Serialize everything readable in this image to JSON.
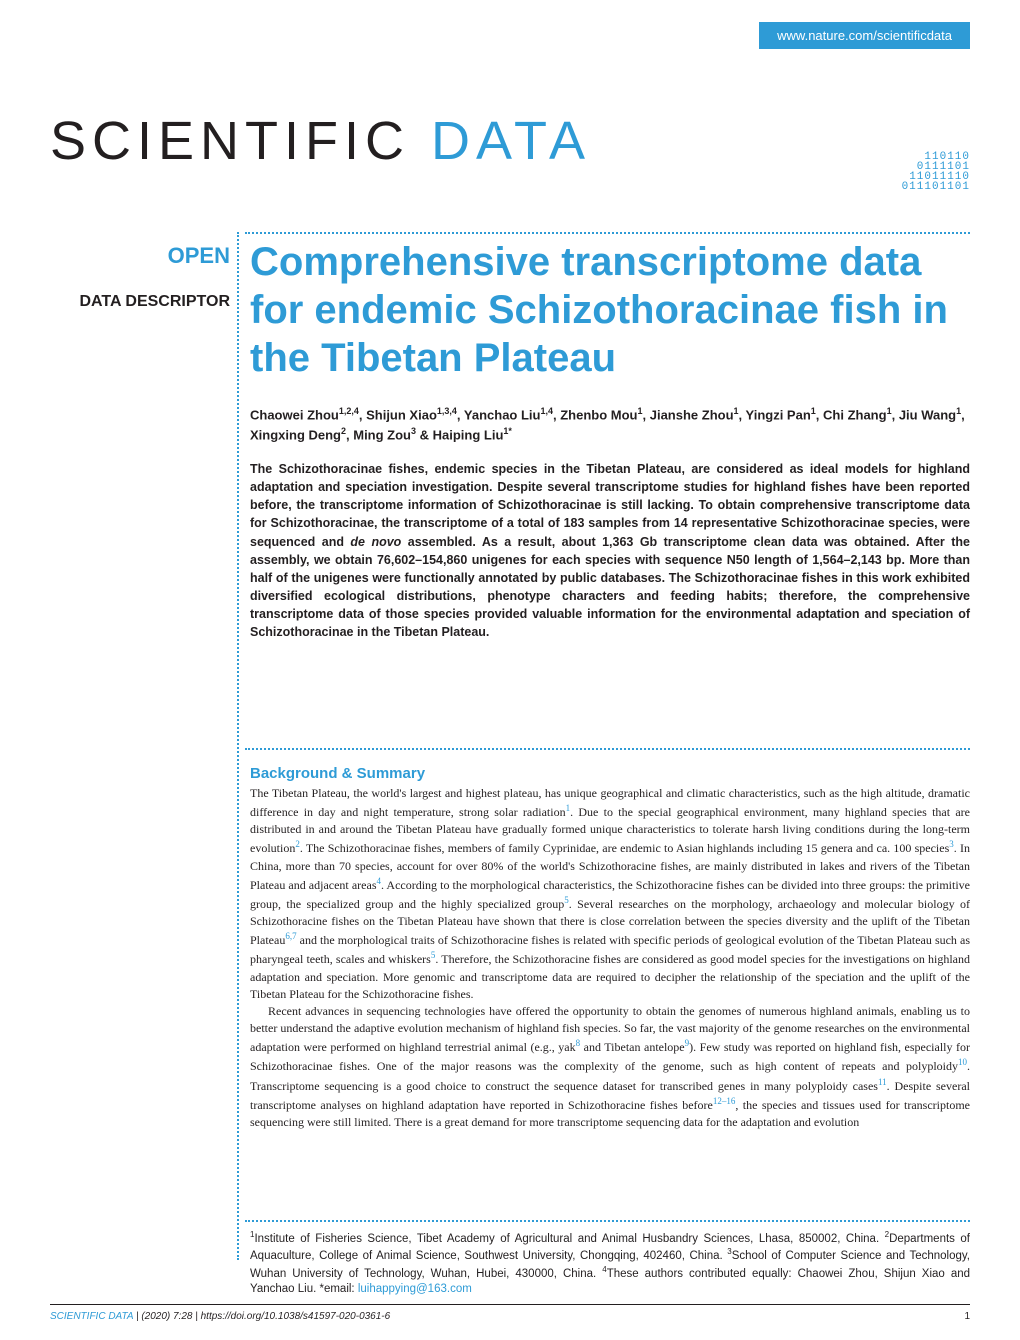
{
  "header": {
    "url": "www.nature.com/scientificdata"
  },
  "logo": {
    "scientific": "SCIENTIFIC",
    "data": " DATA",
    "binary": "110110\n0111101\n11011110\n011101101"
  },
  "labels": {
    "open": "OPEN",
    "descriptor": "DATA DESCRIPTOR"
  },
  "article": {
    "title": "Comprehensive transcriptome data for endemic Schizothoracinae fish in the Tibetan Plateau",
    "authors_html": "Chaowei Zhou<sup>1,2,4</sup>, Shijun Xiao<sup>1,3,4</sup>, Yanchao Liu<sup>1,4</sup>, Zhenbo Mou<sup>1</sup>, Jianshe Zhou<sup>1</sup>, Yingzi Pan<sup>1</sup>, Chi Zhang<sup>1</sup>, Jiu Wang<sup>1</sup>, Xingxing Deng<sup>2</sup>, Ming Zou<sup>3</sup> & Haiping Liu<sup>1*</sup>",
    "abstract": "The Schizothoracinae fishes, endemic species in the Tibetan Plateau, are considered as ideal models for highland adaptation and speciation investigation. Despite several transcriptome studies for highland fishes have been reported before, the transcriptome information of Schizothoracinae is still lacking. To obtain comprehensive transcriptome data for Schizothoracinae, the transcriptome of a total of 183 samples from 14 representative Schizothoracinae species, were sequenced and <em>de novo</em> assembled. As a result, about 1,363 Gb transcriptome clean data was obtained. After the assembly, we obtain 76,602–154,860 unigenes for each species with sequence N50 length of 1,564–2,143 bp. More than half of the unigenes were functionally annotated by public databases. The Schizothoracinae fishes in this work exhibited diversified ecological distributions, phenotype characters and feeding habits; therefore, the comprehensive transcriptome data of those species provided valuable information for the environmental adaptation and speciation of Schizothoracinae in the Tibetan Plateau."
  },
  "section": {
    "heading": "Background & Summary",
    "para1": "The Tibetan Plateau, the world's largest and highest plateau, has unique geographical and climatic characteristics, such as the high altitude, dramatic difference in day and night temperature, strong solar radiation<sup>1</sup>. Due to the special geographical environment, many highland species that are distributed in and around the Tibetan Plateau have gradually formed unique characteristics to tolerate harsh living conditions during the long-term evolution<sup>2</sup>. The Schizothoracinae fishes, members of family Cyprinidae, are endemic to Asian highlands including 15 genera and ca. 100 species<sup>3</sup>. In China, more than 70 species, account for over 80% of the world's Schizothoracine fishes, are mainly distributed in lakes and rivers of the Tibetan Plateau and adjacent areas<sup>4</sup>. According to the morphological characteristics, the Schizothoracine fishes can be divided into three groups: the primitive group, the specialized group and the highly specialized group<sup>5</sup>. Several researches on the morphology, archaeology and molecular biology of Schizothoracine fishes on the Tibetan Plateau have shown that there is close correlation between the species diversity and the uplift of the Tibetan Plateau<sup>6,7</sup> and the morphological traits of Schizothoracine fishes is related with specific periods of geological evolution of the Tibetan Plateau such as pharyngeal teeth, scales and whiskers<sup>5</sup>. Therefore, the Schizothoracine fishes are considered as good model species for the investigations on highland adaptation and speciation. More genomic and transcriptome data are required to decipher the relationship of the speciation and the uplift of the Tibetan Plateau for the Schizothoracine fishes.",
    "para2": "Recent advances in sequencing technologies have offered the opportunity to obtain the genomes of numerous highland animals, enabling us to better understand the adaptive evolution mechanism of highland fish species. So far, the vast majority of the genome researches on the environmental adaptation were performed on highland terrestrial animal (e.g., yak<sup>8</sup> and Tibetan antelope<sup>9</sup>). Few study was reported on highland fish, especially for Schizothoracinae fishes. One of the major reasons was the complexity of the genome, such as high content of repeats and polyploidy<sup>10</sup>. Transcriptome sequencing is a good choice to construct the sequence dataset for transcribed genes in many polyploidy cases<sup>11</sup>. Despite several transcriptome analyses on highland adaptation have reported in Schizothoracine fishes before<sup>12–16</sup>, the species and tissues used for transcriptome sequencing were still limited. There is a great demand for more transcriptome sequencing data for the adaptation and evolution"
  },
  "affiliations": {
    "text_html": "<sup>1</sup>Institute of Fisheries Science, Tibet Academy of Agricultural and Animal Husbandry Sciences, Lhasa, 850002, China. <sup>2</sup>Departments of Aquaculture, College of Animal Science, Southwest University, Chongqing, 402460, China. <sup>3</sup>School of Computer Science and Technology, Wuhan University of Technology, Wuhan, Hubei, 430000, China. <sup>4</sup>These authors contributed equally: Chaowei Zhou, Shijun Xiao and Yanchao Liu. *email: <span class=\"email-link\">luihappying@163.com</span>"
  },
  "footer": {
    "journal": "SCIENTIFIC DATA",
    "citation": "|      (2020) 7:28  | https://doi.org/10.1038/s41597-020-0361-6",
    "page": "1"
  },
  "styling": {
    "accent_color": "#2e9bd6",
    "text_color": "#231f20",
    "background_color": "#ffffff",
    "title_fontsize": 40,
    "logo_fontsize": 54,
    "body_fontsize": 12,
    "abstract_fontsize": 12.5,
    "affiliation_fontsize": 11.5,
    "footer_fontsize": 10
  }
}
